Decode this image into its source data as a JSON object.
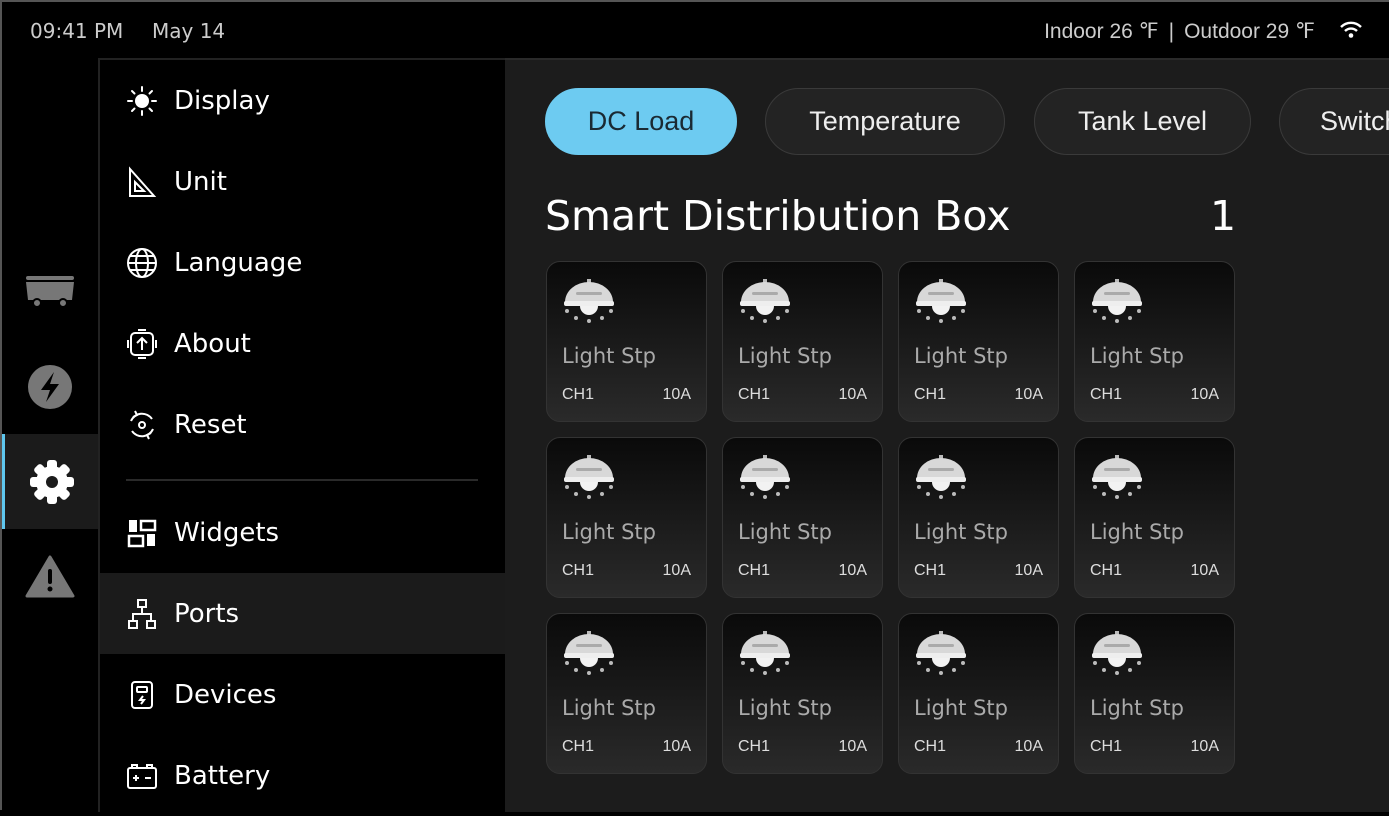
{
  "status_bar": {
    "time": "09:41 PM",
    "date": "May 14",
    "indoor": "Indoor 26 ℉",
    "separator": "|",
    "outdoor": "Outdoor 29 ℉",
    "wifi_icon": "wifi-icon"
  },
  "rail": [
    {
      "icon": "rv-icon"
    },
    {
      "icon": "lightning-icon"
    },
    {
      "icon": "gear-icon",
      "active": true
    },
    {
      "icon": "warning-icon"
    }
  ],
  "menu": {
    "items": [
      {
        "label": "Display",
        "icon": "sun-icon"
      },
      {
        "label": "Unit",
        "icon": "set-square-icon"
      },
      {
        "label": "Language",
        "icon": "globe-icon"
      },
      {
        "label": "About",
        "icon": "chip-icon"
      },
      {
        "label": "Reset",
        "icon": "reset-icon"
      },
      {
        "label": "Widgets",
        "icon": "widgets-icon"
      },
      {
        "label": "Ports",
        "icon": "network-icon",
        "active": true
      },
      {
        "label": "Devices",
        "icon": "device-icon"
      },
      {
        "label": "Battery",
        "icon": "battery-icon"
      }
    ]
  },
  "tabs": [
    {
      "label": "DC Load",
      "active": true
    },
    {
      "label": "Temperature"
    },
    {
      "label": "Tank Level"
    },
    {
      "label": "Switch"
    }
  ],
  "section": {
    "title": "Smart Distribution Box",
    "count": "1"
  },
  "cards": [
    {
      "name": "Light Stp",
      "channel": "CH1",
      "current": "10A"
    },
    {
      "name": "Light Stp",
      "channel": "CH1",
      "current": "10A"
    },
    {
      "name": "Light Stp",
      "channel": "CH1",
      "current": "10A"
    },
    {
      "name": "Light Stp",
      "channel": "CH1",
      "current": "10A"
    },
    {
      "name": "Light Stp",
      "channel": "CH1",
      "current": "10A"
    },
    {
      "name": "Light Stp",
      "channel": "CH1",
      "current": "10A"
    },
    {
      "name": "Light Stp",
      "channel": "CH1",
      "current": "10A"
    },
    {
      "name": "Light Stp",
      "channel": "CH1",
      "current": "10A"
    },
    {
      "name": "Light Stp",
      "channel": "CH1",
      "current": "10A"
    },
    {
      "name": "Light Stp",
      "channel": "CH1",
      "current": "10A"
    },
    {
      "name": "Light Stp",
      "channel": "CH1",
      "current": "10A"
    },
    {
      "name": "Light Stp",
      "channel": "CH1",
      "current": "10A"
    }
  ],
  "colors": {
    "accent": "#6dcbf1",
    "content_bg": "#1c1c1c",
    "highlight": "#1b1b1b"
  }
}
